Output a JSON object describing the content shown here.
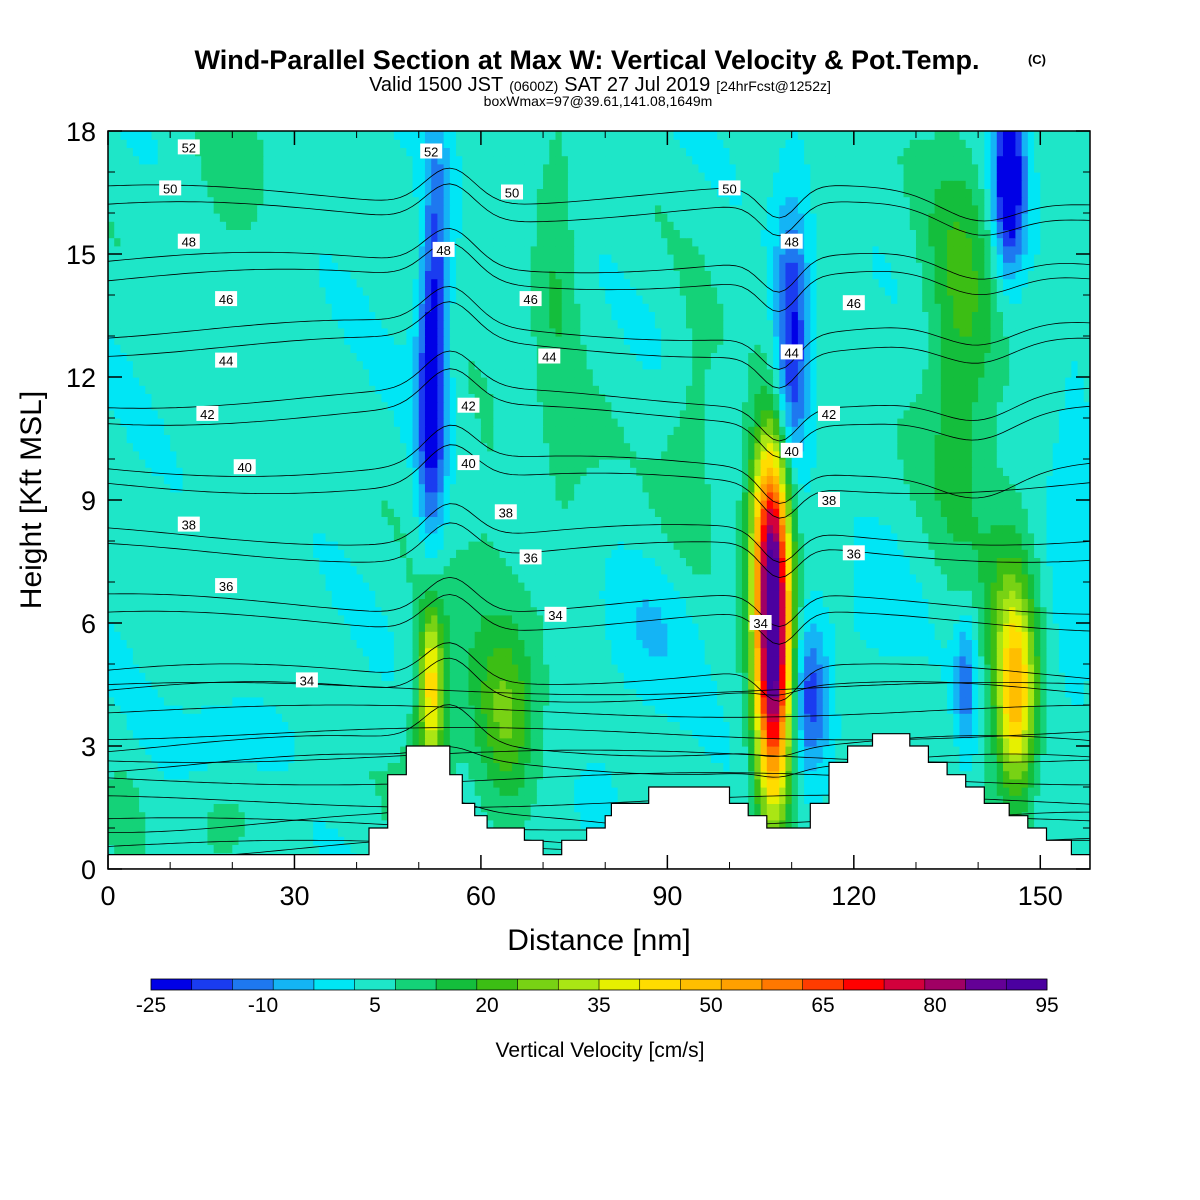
{
  "header": {
    "title": "Wind-Parallel Section at Max W: Vertical Velocity & Pot.Temp.",
    "title_mark": "(C)",
    "valid_a": "Valid 1500 JST",
    "valid_b": "(0600Z)",
    "valid_c": "SAT 27 Jul 2019",
    "valid_d": "[24hrFcst@1252z]",
    "boxline": "boxWmax=97@39.61,141.08,1649m"
  },
  "chart_data": {
    "type": "heatmap",
    "xlabel": "Distance [nm]",
    "ylabel": "Height [Kft MSL]",
    "xlim": [
      0,
      158
    ],
    "ylim": [
      0,
      18
    ],
    "xticks": [
      "0",
      "30",
      "60",
      "90",
      "120",
      "150"
    ],
    "xtick_values": [
      0,
      30,
      60,
      90,
      120,
      150
    ],
    "yticks": [
      "0",
      "3",
      "6",
      "9",
      "12",
      "15",
      "18"
    ],
    "ytick_values": [
      0,
      3,
      6,
      9,
      12,
      15,
      18
    ],
    "colorbar": {
      "label": "Vertical Velocity [cm/s]",
      "range": [
        -25,
        95
      ],
      "step": 5,
      "tick_labels": [
        "-25",
        "-10",
        "5",
        "20",
        "35",
        "50",
        "65",
        "80",
        "95"
      ],
      "tick_values": [
        -25,
        -10,
        5,
        20,
        35,
        50,
        65,
        80,
        95
      ],
      "colors": [
        "#0000e6",
        "#1a3cf0",
        "#1e78f0",
        "#14b4f5",
        "#00e6f5",
        "#1ee6c8",
        "#14d278",
        "#14be3c",
        "#3cbe14",
        "#78d214",
        "#aae614",
        "#e6f000",
        "#ffdc00",
        "#ffbe00",
        "#ffa000",
        "#ff7800",
        "#ff3c00",
        "#ff0000",
        "#d2003c",
        "#a00064",
        "#640096",
        "#4b00a0"
      ]
    },
    "vertical_velocity": {
      "background": 2,
      "features": [
        {
          "x": 52,
          "y": 4.5,
          "sx": 1.3,
          "sy": 1.4,
          "amp": 30
        },
        {
          "x": 52,
          "y": 3.0,
          "sx": 3.0,
          "sy": 2.4,
          "amp": 10
        },
        {
          "x": 64,
          "y": 3.8,
          "sx": 3.5,
          "sy": 1.6,
          "amp": 18
        },
        {
          "x": 107,
          "y": 5.6,
          "sx": 2.0,
          "sy": 2.8,
          "amp": 85
        },
        {
          "x": 106,
          "y": 8.5,
          "sx": 2.4,
          "sy": 1.6,
          "amp": 22
        },
        {
          "x": 146,
          "y": 4.2,
          "sx": 2.2,
          "sy": 1.7,
          "amp": 36
        },
        {
          "x": 145,
          "y": 6.0,
          "sx": 3.0,
          "sy": 2.5,
          "amp": 10
        },
        {
          "x": 52,
          "y": 11.5,
          "sx": 1.6,
          "sy": 2.6,
          "amp": -26
        },
        {
          "x": 53,
          "y": 15.0,
          "sx": 1.5,
          "sy": 2.5,
          "amp": -12
        },
        {
          "x": 110,
          "y": 12.8,
          "sx": 1.9,
          "sy": 2.4,
          "amp": -24
        },
        {
          "x": 113,
          "y": 4.2,
          "sx": 2.0,
          "sy": 1.3,
          "amp": -20
        },
        {
          "x": 145,
          "y": 16.8,
          "sx": 1.8,
          "sy": 1.6,
          "amp": -32
        },
        {
          "x": 138,
          "y": 4.5,
          "sx": 1.2,
          "sy": 1.2,
          "amp": -14
        },
        {
          "x": 20,
          "y": 3.3,
          "sx": 6.0,
          "sy": 0.6,
          "amp": -6
        },
        {
          "x": 137,
          "y": 13.0,
          "sx": 4.0,
          "sy": 3.5,
          "amp": 14
        },
        {
          "x": 94,
          "y": 10.5,
          "sx": 3.0,
          "sy": 2.0,
          "amp": 7
        },
        {
          "x": 72,
          "y": 14.5,
          "sx": 2.5,
          "sy": 2.5,
          "amp": 8
        },
        {
          "x": 75,
          "y": 9.0,
          "sx": 4.0,
          "sy": 2.0,
          "amp": 4
        },
        {
          "x": 20,
          "y": 17.0,
          "sx": 6.0,
          "sy": 1.5,
          "amp": 5
        },
        {
          "x": 60,
          "y": 8.0,
          "sx": 4.0,
          "sy": 3.0,
          "amp": 4
        },
        {
          "x": 88,
          "y": 6.0,
          "sx": 6.0,
          "sy": 1.2,
          "amp": -5
        },
        {
          "x": 123,
          "y": 6.0,
          "sx": 4.0,
          "sy": 1.2,
          "amp": -4
        },
        {
          "x": 155,
          "y": 8.0,
          "sx": 2.5,
          "sy": 3.0,
          "amp": -6
        },
        {
          "x": 82,
          "y": 3.0,
          "sx": 4.0,
          "sy": 1.3,
          "amp": -3
        },
        {
          "x": 3,
          "y": 1.2,
          "sx": 1.5,
          "sy": 0.8,
          "amp": 5
        },
        {
          "x": 18,
          "y": 1.0,
          "sx": 4.0,
          "sy": 0.8,
          "amp": 5
        }
      ]
    },
    "potential_temperature": {
      "levels": [
        34,
        36,
        38,
        40,
        42,
        44,
        46,
        48,
        50,
        52
      ],
      "labels": [
        {
          "x": 13,
          "y": 17.6,
          "text": "52"
        },
        {
          "x": 52,
          "y": 17.5,
          "text": "52"
        },
        {
          "x": 10,
          "y": 16.6,
          "text": "50"
        },
        {
          "x": 65,
          "y": 16.5,
          "text": "50"
        },
        {
          "x": 100,
          "y": 16.6,
          "text": "50"
        },
        {
          "x": 13,
          "y": 15.3,
          "text": "48"
        },
        {
          "x": 54,
          "y": 15.1,
          "text": "48"
        },
        {
          "x": 110,
          "y": 15.3,
          "text": "48"
        },
        {
          "x": 19,
          "y": 13.9,
          "text": "46"
        },
        {
          "x": 68,
          "y": 13.9,
          "text": "46"
        },
        {
          "x": 120,
          "y": 13.8,
          "text": "46"
        },
        {
          "x": 19,
          "y": 12.4,
          "text": "44"
        },
        {
          "x": 71,
          "y": 12.5,
          "text": "44"
        },
        {
          "x": 110,
          "y": 12.6,
          "text": "44"
        },
        {
          "x": 16,
          "y": 11.1,
          "text": "42"
        },
        {
          "x": 58,
          "y": 11.3,
          "text": "42"
        },
        {
          "x": 116,
          "y": 11.1,
          "text": "42"
        },
        {
          "x": 22,
          "y": 9.8,
          "text": "40"
        },
        {
          "x": 58,
          "y": 9.9,
          "text": "40"
        },
        {
          "x": 110,
          "y": 10.2,
          "text": "40"
        },
        {
          "x": 13,
          "y": 8.4,
          "text": "38"
        },
        {
          "x": 64,
          "y": 8.7,
          "text": "38"
        },
        {
          "x": 116,
          "y": 9.0,
          "text": "38"
        },
        {
          "x": 19,
          "y": 6.9,
          "text": "36"
        },
        {
          "x": 68,
          "y": 7.6,
          "text": "36"
        },
        {
          "x": 120,
          "y": 7.7,
          "text": "36"
        },
        {
          "x": 32,
          "y": 4.6,
          "text": "34"
        },
        {
          "x": 72,
          "y": 6.2,
          "text": "34"
        },
        {
          "x": 105,
          "y": 6.0,
          "text": "34"
        }
      ]
    },
    "terrain": [
      [
        0,
        0.35
      ],
      [
        42,
        0.35
      ],
      [
        42,
        1.0
      ],
      [
        45,
        1.0
      ],
      [
        45,
        2.3
      ],
      [
        48,
        2.3
      ],
      [
        48,
        3.0
      ],
      [
        55,
        3.0
      ],
      [
        55,
        2.3
      ],
      [
        57,
        2.3
      ],
      [
        57,
        1.6
      ],
      [
        59,
        1.6
      ],
      [
        59,
        1.3
      ],
      [
        61,
        1.3
      ],
      [
        61,
        1.0
      ],
      [
        67,
        1.0
      ],
      [
        67,
        0.7
      ],
      [
        70,
        0.7
      ],
      [
        70,
        0.35
      ],
      [
        73,
        0.35
      ],
      [
        73,
        0.7
      ],
      [
        77,
        0.7
      ],
      [
        77,
        1.0
      ],
      [
        80,
        1.0
      ],
      [
        80,
        1.3
      ],
      [
        81,
        1.3
      ],
      [
        81,
        1.6
      ],
      [
        87,
        1.6
      ],
      [
        87,
        2.0
      ],
      [
        100,
        2.0
      ],
      [
        100,
        1.6
      ],
      [
        103,
        1.6
      ],
      [
        103,
        1.3
      ],
      [
        106,
        1.3
      ],
      [
        106,
        1.0
      ],
      [
        113,
        1.0
      ],
      [
        113,
        1.6
      ],
      [
        116,
        1.6
      ],
      [
        116,
        2.6
      ],
      [
        119,
        2.6
      ],
      [
        119,
        3.0
      ],
      [
        123,
        3.0
      ],
      [
        123,
        3.3
      ],
      [
        129,
        3.3
      ],
      [
        129,
        3.0
      ],
      [
        132,
        3.0
      ],
      [
        132,
        2.6
      ],
      [
        135,
        2.6
      ],
      [
        135,
        2.3
      ],
      [
        138,
        2.3
      ],
      [
        138,
        2.0
      ],
      [
        141,
        2.0
      ],
      [
        141,
        1.6
      ],
      [
        145,
        1.6
      ],
      [
        145,
        1.3
      ],
      [
        148,
        1.3
      ],
      [
        148,
        1.0
      ],
      [
        151,
        1.0
      ],
      [
        151,
        0.7
      ],
      [
        155,
        0.7
      ],
      [
        155,
        0.35
      ],
      [
        158,
        0.35
      ]
    ]
  }
}
